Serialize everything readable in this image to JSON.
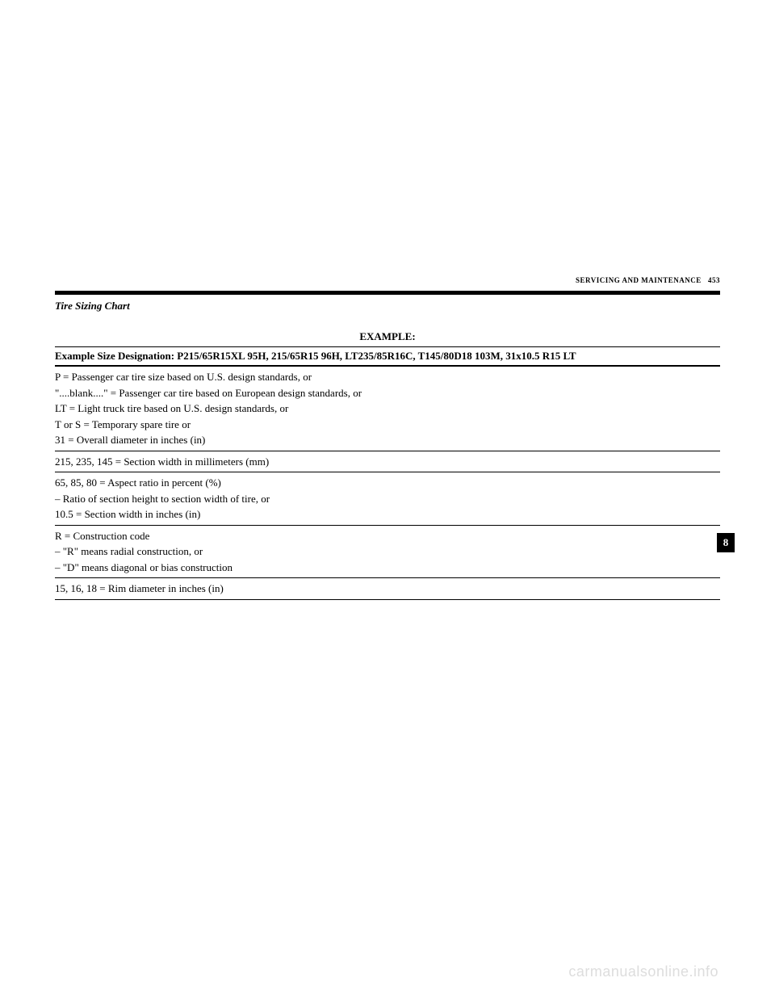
{
  "header": {
    "section": "SERVICING AND MAINTENANCE",
    "page": "453"
  },
  "title": "Tire Sizing Chart",
  "exampleLabel": "EXAMPLE:",
  "designation": "Example Size Designation: P215/65R15XL 95H, 215/65R15 96H, LT235/85R16C, T145/80D18 103M, 31x10.5 R15 LT",
  "rows": {
    "p": "P = Passenger car tire size based on U.S. design standards, or",
    "blank": "\"....blank....\" = Passenger car tire based on European design standards, or",
    "lt": "LT = Light truck tire based on U.S. design standards, or",
    "tors": "T or S = Temporary spare tire or",
    "diameter": "31 = Overall diameter in inches (in)",
    "sectionWidth": "215, 235, 145 = Section width in millimeters (mm)",
    "aspect1": "65, 85, 80 = Aspect ratio in percent (%)",
    "aspect2": "– Ratio of section height to section width of tire, or",
    "aspect3": "10.5 = Section width in inches (in)",
    "construction1": "R = Construction code",
    "construction2": "– \"R\" means radial construction, or",
    "construction3": "– \"D\" means diagonal or bias construction",
    "rim": "15, 16, 18 = Rim diameter in inches (in)"
  },
  "sideTab": "8",
  "watermark": "carmanualsonline.info",
  "colors": {
    "text": "#000000",
    "background": "#ffffff",
    "watermark": "#dddddd"
  }
}
